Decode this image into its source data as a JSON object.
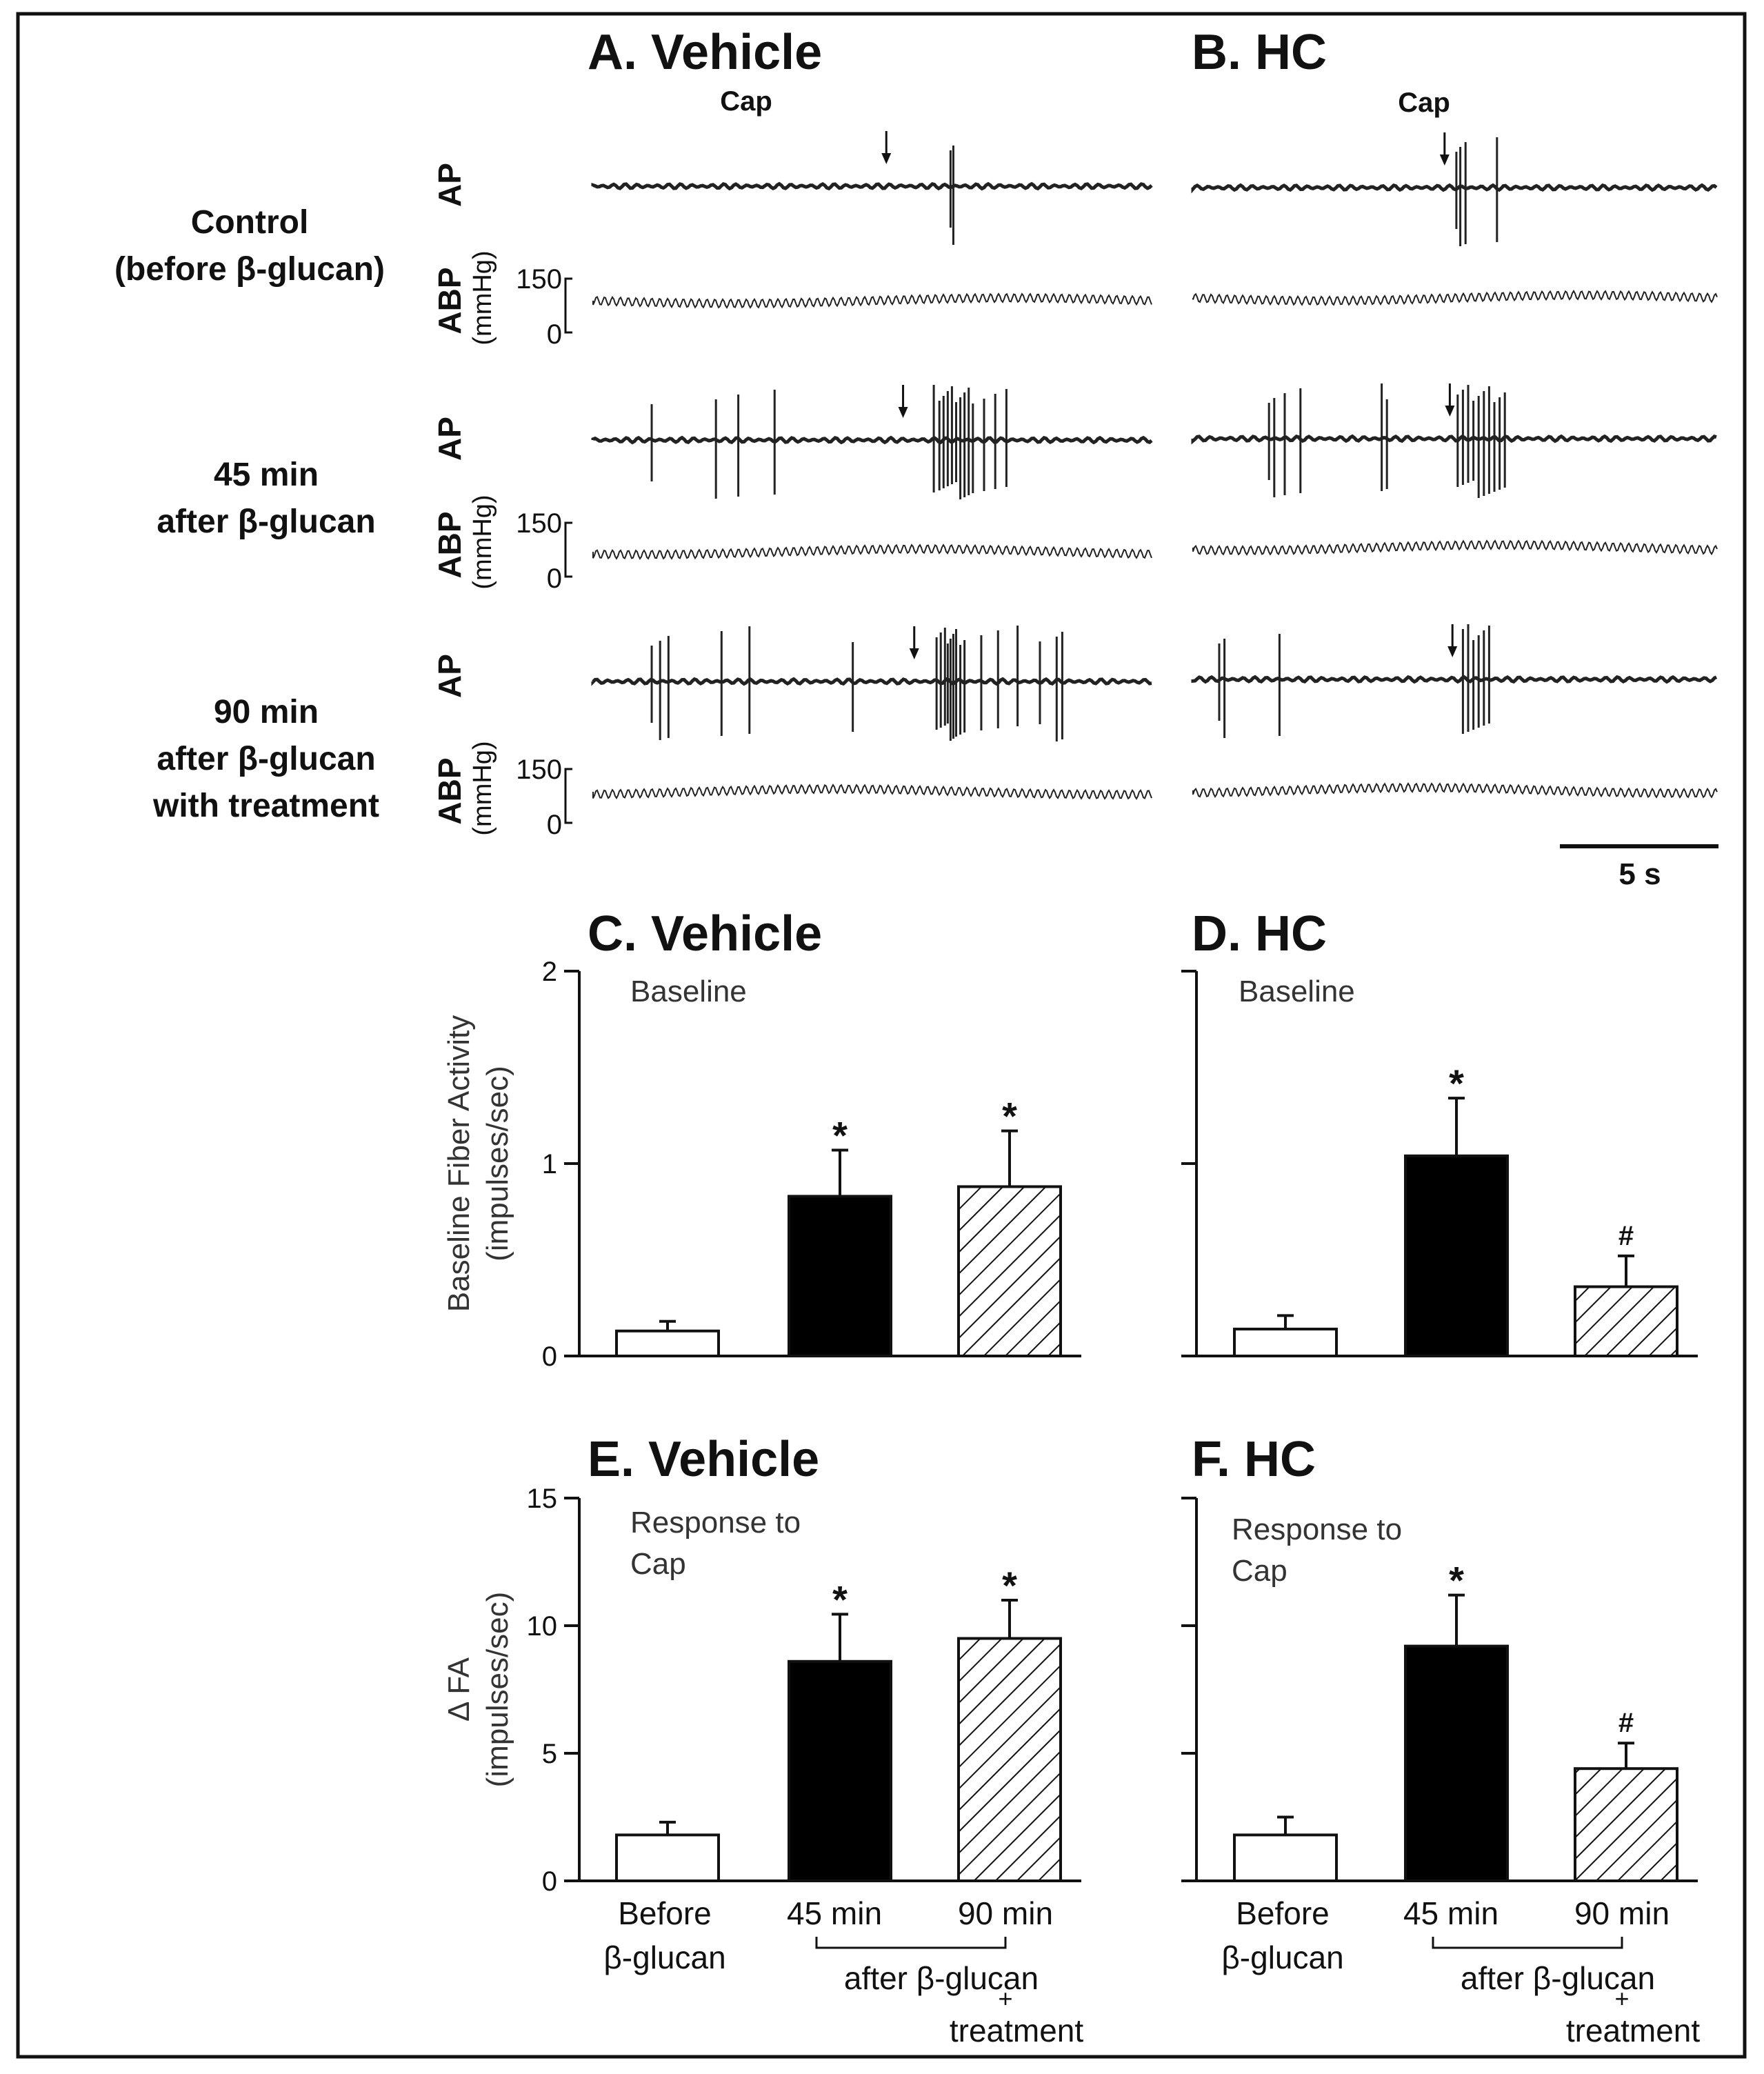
{
  "figure": {
    "panels": {
      "A": "A. Vehicle",
      "B": "B. HC"
    },
    "rows": [
      {
        "line1": "Control",
        "line2": "(before β-glucan)",
        "line3": ""
      },
      {
        "line1": "45 min",
        "line2": "after β-glucan",
        "line3": ""
      },
      {
        "line1": "90 min",
        "line2": "after β-glucan",
        "line3": "with treatment"
      }
    ],
    "channel_labels": {
      "ap": "AP",
      "abp": "ABP",
      "abp_unit": "(mmHg)",
      "abp_max": "150",
      "abp_min": "0"
    },
    "cap_label": "Cap",
    "scale_bar_label": "5 s",
    "recordings": {
      "A": [
        {
          "arrow_s": 10.5,
          "spikes_s": [
            12.8,
            12.9
          ]
        },
        {
          "arrow_s": 11.1,
          "spikes_s": [
            2.1,
            4.4,
            5.2,
            6.5,
            12.2,
            12.4,
            12.55,
            12.7,
            12.85,
            13.0,
            13.15,
            13.3,
            13.45,
            13.6,
            14.0,
            14.4,
            14.8
          ]
        },
        {
          "arrow_s": 11.5,
          "spikes_s": [
            2.1,
            2.4,
            2.7,
            4.6,
            5.6,
            9.3,
            12.3,
            12.45,
            12.6,
            12.7,
            12.8,
            12.9,
            13.0,
            13.15,
            13.3,
            13.9,
            14.5,
            15.2,
            16.0,
            16.6,
            16.8
          ]
        }
      ],
      "B": [
        {
          "arrow_s": 9.6,
          "spikes_s": [
            10.05,
            10.2,
            10.4,
            11.6
          ]
        },
        {
          "arrow_s": 9.8,
          "spikes_s": [
            2.9,
            3.1,
            3.5,
            4.1,
            7.2,
            7.4,
            10.1,
            10.3,
            10.5,
            10.7,
            10.9,
            11.1,
            11.3,
            11.5,
            11.7,
            11.9
          ]
        },
        {
          "arrow_s": 9.9,
          "spikes_s": [
            1.0,
            1.2,
            3.3,
            10.3,
            10.5,
            10.7,
            10.9,
            11.1,
            11.3
          ]
        }
      ]
    }
  },
  "chart_data": [
    {
      "panel": "C",
      "title": "C. Vehicle",
      "type": "bar",
      "inset": "Baseline",
      "inset2": "",
      "ylabel": "Baseline Fiber Activity",
      "ylabel2": "(impulses/sec)",
      "ylim": [
        0,
        2
      ],
      "yticks": [
        "0",
        "1",
        "2"
      ],
      "categories": [
        "Before β-glucan",
        "45 min",
        "90 min"
      ],
      "fills": [
        "white",
        "black",
        "hatched"
      ],
      "values": [
        0.13,
        0.83,
        0.88
      ],
      "errors": [
        0.05,
        0.24,
        0.29
      ],
      "marks": [
        "",
        "*",
        "*"
      ]
    },
    {
      "panel": "D",
      "title": "D. HC",
      "type": "bar",
      "inset": "Baseline",
      "inset2": "",
      "ylim": [
        0,
        2
      ],
      "categories": [
        "Before β-glucan",
        "45 min",
        "90 min"
      ],
      "fills": [
        "white",
        "black",
        "hatched"
      ],
      "values": [
        0.14,
        1.04,
        0.36
      ],
      "errors": [
        0.07,
        0.3,
        0.16
      ],
      "marks": [
        "",
        "*",
        "#"
      ]
    },
    {
      "panel": "E",
      "title": "E. Vehicle",
      "type": "bar",
      "inset": "Response to",
      "inset2": "Cap",
      "ylabel": "Δ FA",
      "ylabel2": "(impulses/sec)",
      "ylim": [
        0,
        15
      ],
      "yticks": [
        "0",
        "5",
        "10",
        "15"
      ],
      "categories": [
        "Before β-glucan",
        "45 min",
        "90 min"
      ],
      "fills": [
        "white",
        "black",
        "hatched"
      ],
      "values": [
        1.8,
        8.6,
        9.5
      ],
      "errors": [
        0.5,
        1.85,
        1.5
      ],
      "marks": [
        "",
        "*",
        "*"
      ]
    },
    {
      "panel": "F",
      "title": "F. HC",
      "type": "bar",
      "inset": "Response to",
      "inset2": "Cap",
      "ylim": [
        0,
        15
      ],
      "categories": [
        "Before β-glucan",
        "45 min",
        "90 min"
      ],
      "fills": [
        "white",
        "black",
        "hatched"
      ],
      "values": [
        1.8,
        9.2,
        4.4
      ],
      "errors": [
        0.7,
        2.0,
        1.0
      ],
      "marks": [
        "",
        "*",
        "#"
      ]
    }
  ],
  "xaxis_labels": {
    "before_1": "Before",
    "before_2": "β-glucan",
    "t45": "45 min",
    "t90": "90 min",
    "bracket": "after β-glucan",
    "plus": "+",
    "treatment": "treatment"
  }
}
